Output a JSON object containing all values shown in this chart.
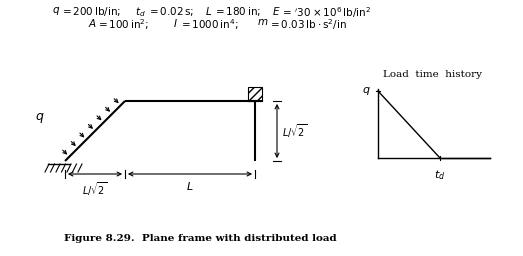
{
  "bg_color": "#ffffff",
  "fig_width": 5.23,
  "fig_height": 2.56,
  "dpi": 100,
  "fc": "#000000",
  "caption": "Figure 8.29.  Plane frame with distributed load"
}
